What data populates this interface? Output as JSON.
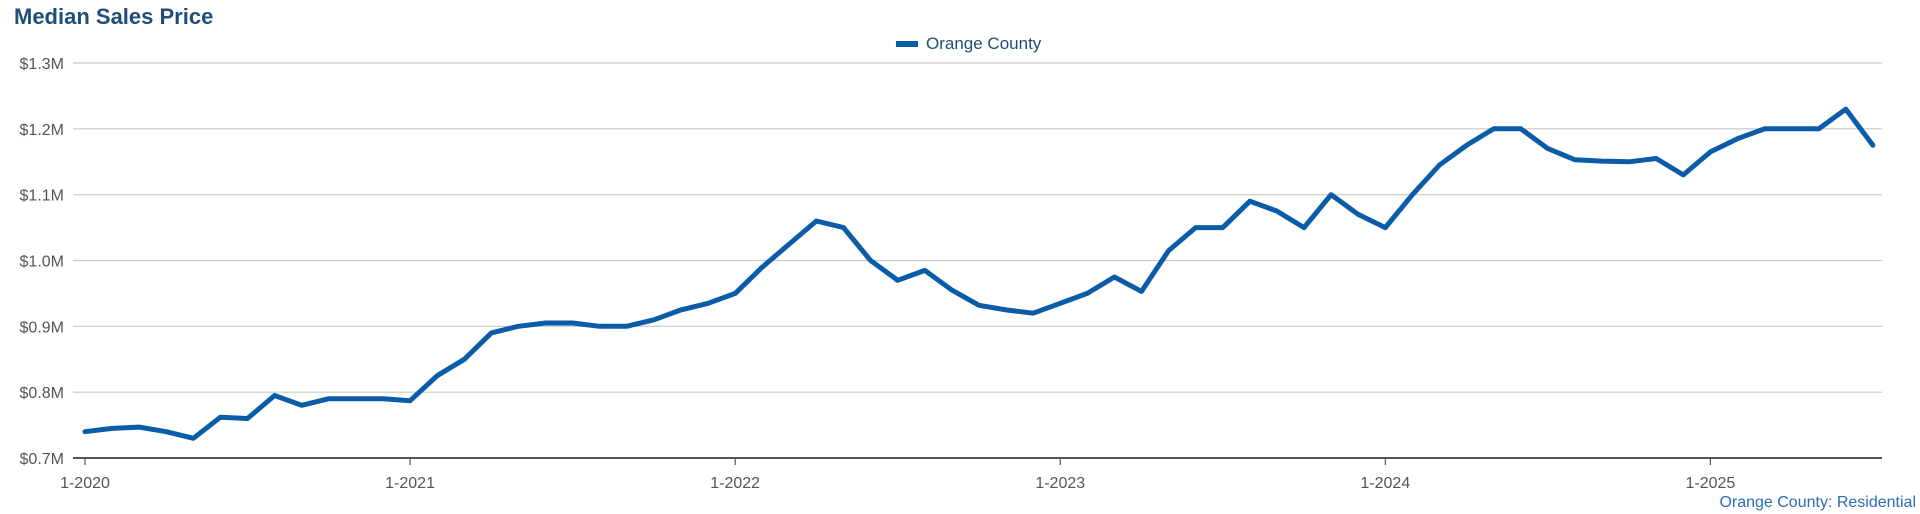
{
  "chart_data": {
    "type": "line",
    "title": "Median Sales Price",
    "footer": "Orange County: Residential",
    "xlabel": "",
    "ylabel": "",
    "ylim": [
      0.7,
      1.3
    ],
    "y_ticks": [
      "$0.7M",
      "$0.8M",
      "$0.9M",
      "$1.0M",
      "$1.1M",
      "$1.2M",
      "$1.3M"
    ],
    "y_tick_values": [
      0.7,
      0.8,
      0.9,
      1.0,
      1.1,
      1.2,
      1.3
    ],
    "x_ticks": [
      "1-2020",
      "1-2021",
      "1-2022",
      "1-2023",
      "1-2024",
      "1-2025"
    ],
    "x_tick_dates": [
      "2020-01",
      "2021-01",
      "2022-01",
      "2023-01",
      "2024-01",
      "2025-01"
    ],
    "grid": true,
    "legend_position": "top-center",
    "series": [
      {
        "name": "Orange County",
        "color": "#0a5ca8",
        "x": [
          "2020-01",
          "2020-02",
          "2020-03",
          "2020-04",
          "2020-05",
          "2020-06",
          "2020-07",
          "2020-08",
          "2020-09",
          "2020-10",
          "2020-11",
          "2020-12",
          "2021-01",
          "2021-02",
          "2021-03",
          "2021-04",
          "2021-05",
          "2021-06",
          "2021-07",
          "2021-08",
          "2021-09",
          "2021-10",
          "2021-11",
          "2021-12",
          "2022-01",
          "2022-02",
          "2022-03",
          "2022-04",
          "2022-05",
          "2022-06",
          "2022-07",
          "2022-08",
          "2022-09",
          "2022-10",
          "2022-11",
          "2022-12",
          "2023-01",
          "2023-02",
          "2023-03",
          "2023-04",
          "2023-05",
          "2023-06",
          "2023-07",
          "2023-08",
          "2023-09",
          "2023-10",
          "2023-11",
          "2023-12",
          "2024-01",
          "2024-02",
          "2024-03",
          "2024-04",
          "2024-05",
          "2024-06",
          "2024-07",
          "2024-08",
          "2024-09",
          "2024-10",
          "2024-11",
          "2024-12",
          "2025-01",
          "2025-02",
          "2025-03",
          "2025-04",
          "2025-05",
          "2025-06",
          "2025-07"
        ],
        "values": [
          0.74,
          0.745,
          0.747,
          0.74,
          0.73,
          0.762,
          0.76,
          0.795,
          0.78,
          0.79,
          0.79,
          0.79,
          0.787,
          0.825,
          0.85,
          0.89,
          0.9,
          0.905,
          0.905,
          0.9,
          0.9,
          0.91,
          0.925,
          0.935,
          0.95,
          0.99,
          1.025,
          1.06,
          1.05,
          1.0,
          0.97,
          0.985,
          0.955,
          0.932,
          0.925,
          0.92,
          0.935,
          0.95,
          0.975,
          0.953,
          1.015,
          1.05,
          1.05,
          1.09,
          1.075,
          1.05,
          1.1,
          1.07,
          1.05,
          1.1,
          1.145,
          1.175,
          1.2,
          1.2,
          1.17,
          1.153,
          1.151,
          1.15,
          1.155,
          1.13,
          1.165,
          1.185,
          1.2,
          1.2,
          1.2,
          1.23,
          1.175
        ]
      }
    ]
  }
}
